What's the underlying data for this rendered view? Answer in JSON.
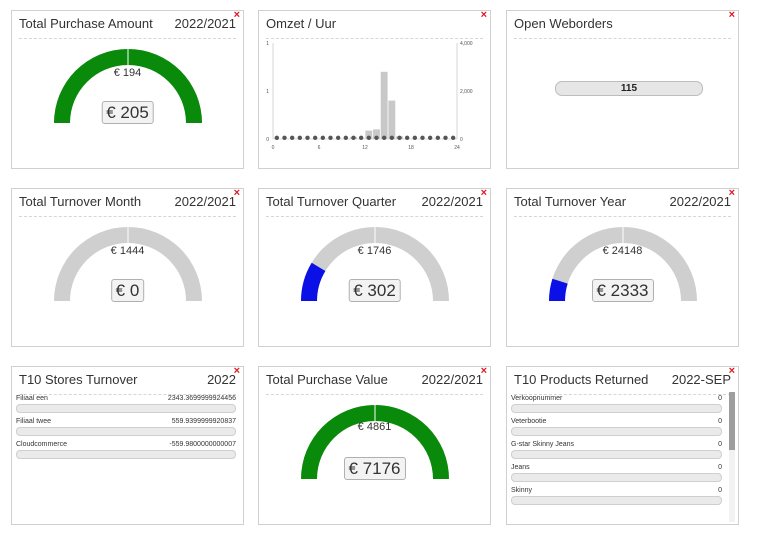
{
  "colors": {
    "green": "#0a8a0a",
    "blue": "#0b10e6",
    "track": "#cfcfcf",
    "close": "#e0181e",
    "histogram_bar": "#c8c8c8"
  },
  "widgets": {
    "purchase_amount": {
      "title": "Total Purchase Amount",
      "period": "2022/2021",
      "target": "€ 194",
      "value": "€ 205",
      "fill": 1.0,
      "color": "green"
    },
    "omzet": {
      "title": "Omzet / Uur"
    },
    "open_weborders": {
      "title": "Open Weborders",
      "count": "115"
    },
    "turnover_month": {
      "title": "Total Turnover Month",
      "period": "2022/2021",
      "target": "€ 1444",
      "value": "€ 0",
      "fill": 0.0,
      "color": "blue"
    },
    "turnover_quarter": {
      "title": "Total Turnover Quarter",
      "period": "2022/2021",
      "target": "€ 1746",
      "value": "€ 302",
      "fill": 0.173,
      "color": "blue"
    },
    "turnover_year": {
      "title": "Total Turnover Year",
      "period": "2022/2021",
      "target": "€ 24148",
      "value": "€ 2333",
      "fill": 0.097,
      "color": "blue"
    },
    "stores_turnover": {
      "title": "T10 Stores Turnover",
      "period": "2022",
      "items": [
        {
          "name": "Filiaal een",
          "value": "2343.3699999924456"
        },
        {
          "name": "Filiaal twee",
          "value": "559.9399999920837"
        },
        {
          "name": "Cloudcommerce",
          "value": "-559.9800000000007"
        }
      ]
    },
    "purchase_value": {
      "title": "Total Purchase Value",
      "period": "2022/2021",
      "target": "€ 4861",
      "value": "€ 7176",
      "fill": 1.0,
      "color": "green"
    },
    "products_returned": {
      "title": "T10 Products Returned",
      "period": "2022-SEP",
      "items": [
        {
          "name": "Verkoopnummer",
          "value": "0"
        },
        {
          "name": "Veterbootie",
          "value": "0"
        },
        {
          "name": "G-star Skinny Jeans",
          "value": "0"
        },
        {
          "name": "Jeans",
          "value": "0"
        },
        {
          "name": "Skinny",
          "value": "0"
        }
      ]
    }
  },
  "chart_data": {
    "type": "bar",
    "x": [
      0,
      1,
      2,
      3,
      4,
      5,
      6,
      7,
      8,
      9,
      10,
      11,
      12,
      13,
      14,
      15,
      16,
      17,
      18,
      19,
      20,
      21,
      22,
      23
    ],
    "values": [
      0,
      0,
      0,
      0,
      0,
      0,
      0,
      0,
      0,
      0,
      90,
      0,
      350,
      400,
      2800,
      1600,
      110,
      0,
      0,
      0,
      0,
      0,
      0,
      0
    ],
    "xticks": [
      "0",
      "6",
      "12",
      "18",
      "24"
    ],
    "xlim": [
      0,
      24
    ],
    "y_left_ticks": [
      "0",
      "1",
      "1"
    ],
    "y_right_ticks": [
      "0",
      "2,000",
      "4,000"
    ],
    "ylim": [
      0,
      4000
    ],
    "line_series_values": [
      0,
      0,
      0,
      0,
      0,
      0,
      0,
      0,
      0,
      0,
      0,
      0,
      0,
      0,
      0,
      0,
      0,
      0,
      0,
      0,
      0,
      0,
      0,
      0
    ],
    "title": "Omzet / Uur"
  }
}
